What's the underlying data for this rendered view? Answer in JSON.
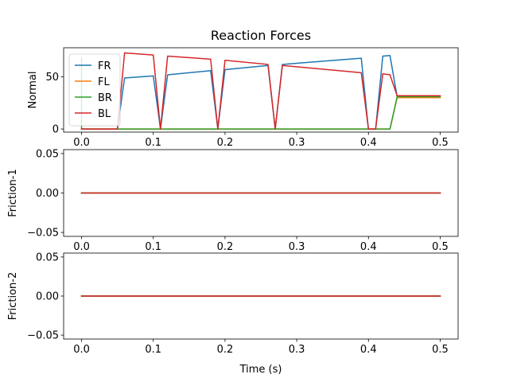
{
  "chart_data": [
    {
      "type": "line",
      "title": "Reaction Forces",
      "xlabel": "",
      "ylabel": "Normal",
      "xlim": [
        -0.025,
        0.525
      ],
      "ylim": [
        -3,
        78
      ],
      "xticks": [
        "0.0",
        "0.1",
        "0.2",
        "0.3",
        "0.4",
        "0.5"
      ],
      "xtick_values": [
        0,
        0.1,
        0.2,
        0.3,
        0.4,
        0.5
      ],
      "yticks": [
        "0",
        "50"
      ],
      "ytick_values": [
        0,
        50
      ],
      "grid": false,
      "legend": "upper-left",
      "series": [
        {
          "name": "FR",
          "color": "#1f77b4",
          "points": [
            [
              0.0,
              0
            ],
            [
              0.005,
              0
            ],
            [
              0.01,
              0
            ],
            [
              0.02,
              0
            ],
            [
              0.03,
              0
            ],
            [
              0.04,
              0
            ],
            [
              0.05,
              0
            ],
            [
              0.06,
              49
            ],
            [
              0.1,
              51
            ],
            [
              0.11,
              0
            ],
            [
              0.12,
              52
            ],
            [
              0.18,
              56
            ],
            [
              0.19,
              0
            ],
            [
              0.2,
              57
            ],
            [
              0.26,
              61
            ],
            [
              0.27,
              0
            ],
            [
              0.28,
              62
            ],
            [
              0.39,
              68
            ],
            [
              0.4,
              0
            ],
            [
              0.41,
              0
            ],
            [
              0.42,
              70
            ],
            [
              0.43,
              70.5
            ],
            [
              0.44,
              31
            ],
            [
              0.5,
              31
            ]
          ]
        },
        {
          "name": "FL",
          "color": "#ff7f0e",
          "points": [
            [
              0.0,
              0
            ],
            [
              0.43,
              0
            ],
            [
              0.44,
              30
            ],
            [
              0.5,
              30
            ]
          ]
        },
        {
          "name": "BR",
          "color": "#2ca02c",
          "points": [
            [
              0.0,
              68
            ],
            [
              0.0,
              0
            ],
            [
              0.43,
              0
            ],
            [
              0.44,
              31
            ],
            [
              0.5,
              31
            ]
          ]
        },
        {
          "name": "BL",
          "color": "#d62728",
          "points": [
            [
              0.0,
              0
            ],
            [
              0.05,
              0
            ],
            [
              0.06,
              73
            ],
            [
              0.1,
              71
            ],
            [
              0.11,
              0
            ],
            [
              0.12,
              70
            ],
            [
              0.18,
              67
            ],
            [
              0.19,
              0
            ],
            [
              0.2,
              66
            ],
            [
              0.26,
              62
            ],
            [
              0.27,
              0
            ],
            [
              0.28,
              61
            ],
            [
              0.39,
              54
            ],
            [
              0.4,
              0
            ],
            [
              0.41,
              0
            ],
            [
              0.42,
              53
            ],
            [
              0.43,
              52
            ],
            [
              0.44,
              32
            ],
            [
              0.5,
              32
            ]
          ]
        }
      ]
    },
    {
      "type": "line",
      "title": "",
      "xlabel": "",
      "ylabel": "Friction-1",
      "xlim": [
        -0.025,
        0.525
      ],
      "ylim": [
        -0.055,
        0.055
      ],
      "xticks": [
        "0.0",
        "0.1",
        "0.2",
        "0.3",
        "0.4",
        "0.5"
      ],
      "xtick_values": [
        0,
        0.1,
        0.2,
        0.3,
        0.4,
        0.5
      ],
      "yticks": [
        "−0.05",
        "0.00",
        "0.05"
      ],
      "ytick_values": [
        -0.05,
        0,
        0.05
      ],
      "grid": false,
      "series": [
        {
          "name": "FR",
          "color": "#1f77b4",
          "points": [
            [
              0,
              0
            ],
            [
              0.5,
              0
            ]
          ]
        },
        {
          "name": "FL",
          "color": "#ff7f0e",
          "points": [
            [
              0,
              0
            ],
            [
              0.5,
              0
            ]
          ]
        },
        {
          "name": "BR",
          "color": "#2ca02c",
          "points": [
            [
              0,
              0
            ],
            [
              0.5,
              0
            ]
          ]
        },
        {
          "name": "BL",
          "color": "#d62728",
          "points": [
            [
              0,
              0
            ],
            [
              0.5,
              0
            ]
          ]
        }
      ]
    },
    {
      "type": "line",
      "title": "",
      "xlabel": "Time (s)",
      "ylabel": "Friction-2",
      "xlim": [
        -0.025,
        0.525
      ],
      "ylim": [
        -0.055,
        0.055
      ],
      "xticks": [
        "0.0",
        "0.1",
        "0.2",
        "0.3",
        "0.4",
        "0.5"
      ],
      "xtick_values": [
        0,
        0.1,
        0.2,
        0.3,
        0.4,
        0.5
      ],
      "yticks": [
        "−0.05",
        "0.00",
        "0.05"
      ],
      "ytick_values": [
        -0.05,
        0,
        0.05
      ],
      "grid": false,
      "series": [
        {
          "name": "FR",
          "color": "#1f77b4",
          "points": [
            [
              0,
              0
            ],
            [
              0.5,
              0
            ]
          ]
        },
        {
          "name": "FL",
          "color": "#ff7f0e",
          "points": [
            [
              0,
              0
            ],
            [
              0.5,
              0
            ]
          ]
        },
        {
          "name": "BR",
          "color": "#2ca02c",
          "points": [
            [
              0,
              0
            ],
            [
              0.5,
              0
            ]
          ]
        },
        {
          "name": "BL",
          "color": "#d62728",
          "points": [
            [
              0,
              0
            ],
            [
              0.5,
              0
            ]
          ]
        }
      ]
    }
  ]
}
